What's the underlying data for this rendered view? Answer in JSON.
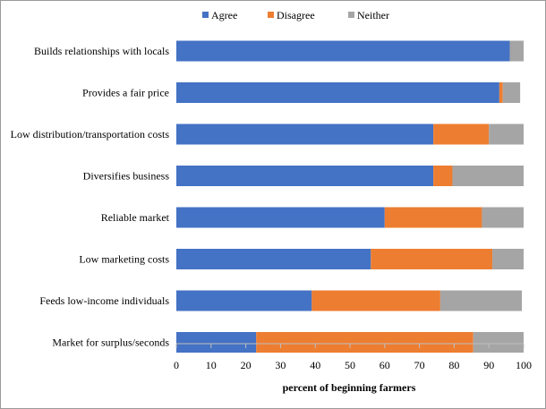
{
  "chart_data": {
    "type": "bar",
    "orientation": "horizontal",
    "stacked": true,
    "title": "",
    "xlabel": "percent of beginning farmers",
    "ylabel": "",
    "xlim": [
      0,
      100
    ],
    "xticks": [
      0,
      10,
      20,
      30,
      40,
      50,
      60,
      70,
      80,
      90,
      100
    ],
    "legend_position": "top",
    "grid": false,
    "categories": [
      "Builds relationships with locals",
      "Provides a fair price",
      "Low distribution/transportation costs",
      "Diversifies business",
      "Reliable market",
      "Low marketing costs",
      "Feeds low-income individuals",
      "Market for surplus/seconds"
    ],
    "series": [
      {
        "name": "Agree",
        "color": "#4472C4",
        "values": [
          96,
          93,
          74,
          74,
          60,
          56,
          39,
          23
        ]
      },
      {
        "name": "Disagree",
        "color": "#ED7D31",
        "values": [
          0,
          1,
          16,
          5.5,
          28,
          35,
          37,
          62.5
        ]
      },
      {
        "name": "Neither",
        "color": "#A5A5A5",
        "values": [
          4,
          5,
          10,
          20.5,
          12,
          9,
          23.5,
          14.5
        ]
      }
    ]
  }
}
